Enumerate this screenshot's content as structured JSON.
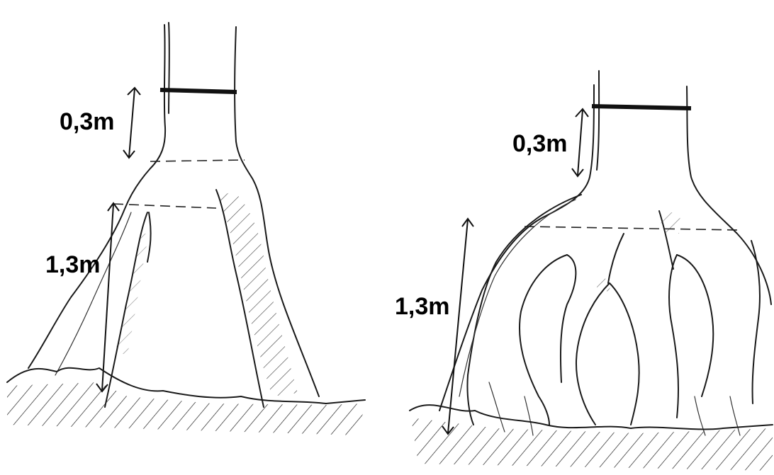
{
  "figure": {
    "left_tree": {
      "upper_measure": "0,3m",
      "lower_measure": "1,3m"
    },
    "right_tree": {
      "upper_measure": "0,3m",
      "lower_measure": "1,3m"
    }
  }
}
